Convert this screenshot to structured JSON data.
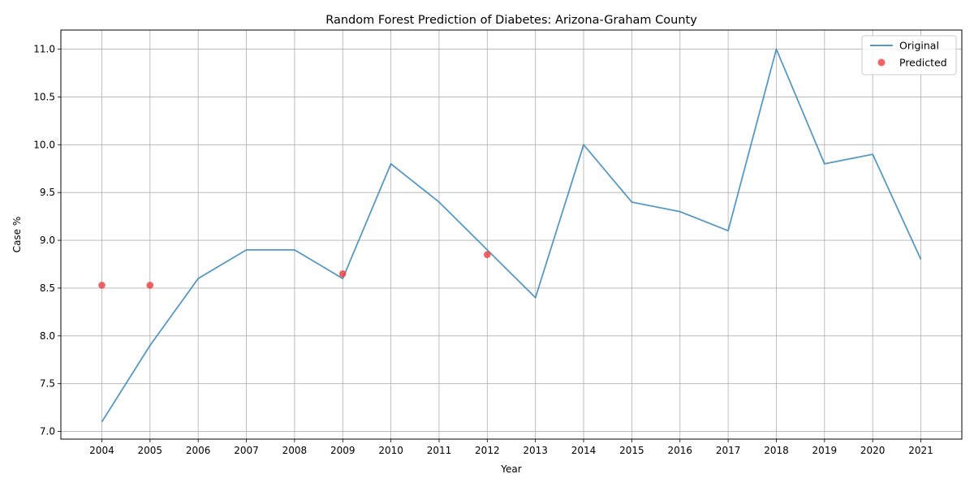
{
  "chart_data": {
    "type": "line",
    "title": "Random Forest Prediction of Diabetes: Arizona-Graham County",
    "xlabel": "Year",
    "ylabel": "Case %",
    "x_ticks": [
      "2004",
      "2005",
      "2006",
      "2007",
      "2008",
      "2009",
      "2010",
      "2011",
      "2012",
      "2013",
      "2014",
      "2015",
      "2016",
      "2017",
      "2018",
      "2019",
      "2020",
      "2021"
    ],
    "y_ticks": [
      "7.0",
      "7.5",
      "8.0",
      "8.5",
      "9.0",
      "9.5",
      "10.0",
      "10.5",
      "11.0"
    ],
    "ylim": [
      6.92,
      11.2
    ],
    "xlim": [
      2003.15,
      2021.85
    ],
    "grid": true,
    "legend_position": "top-right",
    "series": [
      {
        "name": "Original",
        "kind": "line",
        "color": "#3a87bb",
        "x": [
          2004,
          2005,
          2006,
          2007,
          2008,
          2009,
          2010,
          2011,
          2012,
          2013,
          2014,
          2015,
          2016,
          2017,
          2018,
          2019,
          2020,
          2021
        ],
        "y": [
          7.1,
          7.9,
          8.6,
          8.9,
          8.9,
          8.6,
          9.8,
          9.4,
          8.9,
          8.4,
          10.0,
          9.4,
          9.3,
          9.1,
          11.0,
          9.8,
          9.9,
          8.8
        ]
      },
      {
        "name": "Predicted",
        "kind": "scatter",
        "color": "#f03b3b",
        "x": [
          2004,
          2005,
          2009,
          2012
        ],
        "y": [
          8.53,
          8.53,
          8.65,
          8.85
        ]
      }
    ]
  }
}
